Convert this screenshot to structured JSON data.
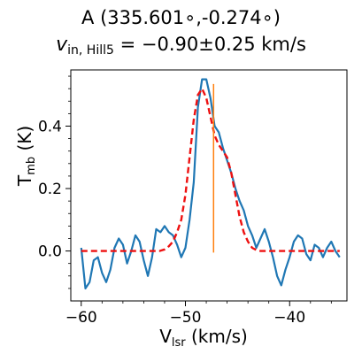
{
  "title": {
    "line1": "A (335.601∘,-0.274∘)",
    "line2_symbol": "v",
    "line2_subscript": "in, Hill5",
    "line2_value": " = −0.90±0.25 km/s"
  },
  "chart_data": {
    "type": "line",
    "xlabel_main": "V",
    "xlabel_sub": "lsr",
    "xlabel_unit": " (km/s)",
    "ylabel_main": "T",
    "ylabel_sub": "mb",
    "ylabel_unit": " (K)",
    "xlim": [
      -61,
      -34.5
    ],
    "ylim": [
      -0.16,
      0.58
    ],
    "xticks": [
      -60,
      -50,
      -40
    ],
    "xtick_labels": [
      "−60",
      "−50",
      "−40"
    ],
    "yticks": [
      0.0,
      0.2,
      0.4
    ],
    "ytick_labels": [
      "0.0",
      "0.2",
      "0.4"
    ],
    "grid": false,
    "vertical_line": {
      "x": -47.3,
      "y_range": [
        -0.005,
        0.535
      ],
      "color": "#ff7f0e"
    },
    "series": [
      {
        "style": "solid",
        "color": "#1f77b4",
        "x": [
          -60,
          -59.6,
          -59.2,
          -58.8,
          -58.4,
          -58.0,
          -57.6,
          -57.2,
          -56.8,
          -56.4,
          -56.0,
          -55.6,
          -55.2,
          -54.8,
          -54.4,
          -54.0,
          -53.6,
          -53.2,
          -52.8,
          -52.4,
          -52.0,
          -51.6,
          -51.2,
          -50.8,
          -50.4,
          -50.0,
          -49.6,
          -49.2,
          -48.8,
          -48.4,
          -48.0,
          -47.6,
          -47.2,
          -46.8,
          -46.4,
          -46.0,
          -45.6,
          -45.2,
          -44.8,
          -44.4,
          -44.0,
          -43.6,
          -43.2,
          -42.8,
          -42.4,
          -42.0,
          -41.6,
          -41.2,
          -40.8,
          -40.4,
          -40.0,
          -39.6,
          -39.2,
          -38.8,
          -38.4,
          -38.0,
          -37.6,
          -37.2,
          -36.8,
          -36.4,
          -36.0,
          -35.6,
          -35.2
        ],
        "y": [
          0.01,
          -0.12,
          -0.1,
          -0.03,
          -0.02,
          -0.07,
          -0.1,
          -0.06,
          0.01,
          0.04,
          0.02,
          -0.04,
          0.0,
          0.05,
          0.03,
          -0.03,
          -0.08,
          -0.02,
          0.07,
          0.06,
          0.08,
          0.06,
          0.05,
          0.02,
          -0.02,
          0.01,
          0.1,
          0.22,
          0.46,
          0.55,
          0.55,
          0.49,
          0.4,
          0.38,
          0.33,
          0.29,
          0.25,
          0.2,
          0.16,
          0.13,
          0.08,
          0.05,
          0.01,
          0.04,
          0.07,
          0.03,
          -0.02,
          -0.08,
          -0.11,
          -0.06,
          -0.02,
          0.03,
          0.05,
          0.04,
          -0.01,
          -0.03,
          0.02,
          0.01,
          -0.02,
          0.01,
          0.03,
          0.0,
          -0.02
        ]
      },
      {
        "style": "dashed",
        "color": "#ee1111",
        "x": [
          -60,
          -59,
          -58,
          -57,
          -56,
          -55,
          -54,
          -53,
          -52.5,
          -52,
          -51.6,
          -51.2,
          -50.8,
          -50.4,
          -50.0,
          -49.6,
          -49.2,
          -48.8,
          -48.4,
          -48.0,
          -47.6,
          -47.2,
          -46.8,
          -46.4,
          -46.0,
          -45.6,
          -45.2,
          -44.8,
          -44.4,
          -44.0,
          -43.6,
          -43.2,
          -42.8,
          -42.4,
          -42.0,
          -41.6,
          -41.2,
          -40.8,
          -40.4,
          -40.0,
          -39.0,
          -38.0,
          -37.0,
          -36.0,
          -35.2
        ],
        "y": [
          0.0,
          0.0,
          0.0,
          0.0,
          0.0,
          0.0,
          0.0,
          0.0,
          0.0,
          0.005,
          0.015,
          0.03,
          0.06,
          0.1,
          0.18,
          0.3,
          0.42,
          0.5,
          0.52,
          0.49,
          0.43,
          0.37,
          0.34,
          0.32,
          0.3,
          0.25,
          0.18,
          0.11,
          0.06,
          0.03,
          0.01,
          0.003,
          0.0,
          0.0,
          0.0,
          0.0,
          0.0,
          0.0,
          0.0,
          0.0,
          0.0,
          0.0,
          0.0,
          0.0,
          0.0
        ]
      }
    ]
  }
}
